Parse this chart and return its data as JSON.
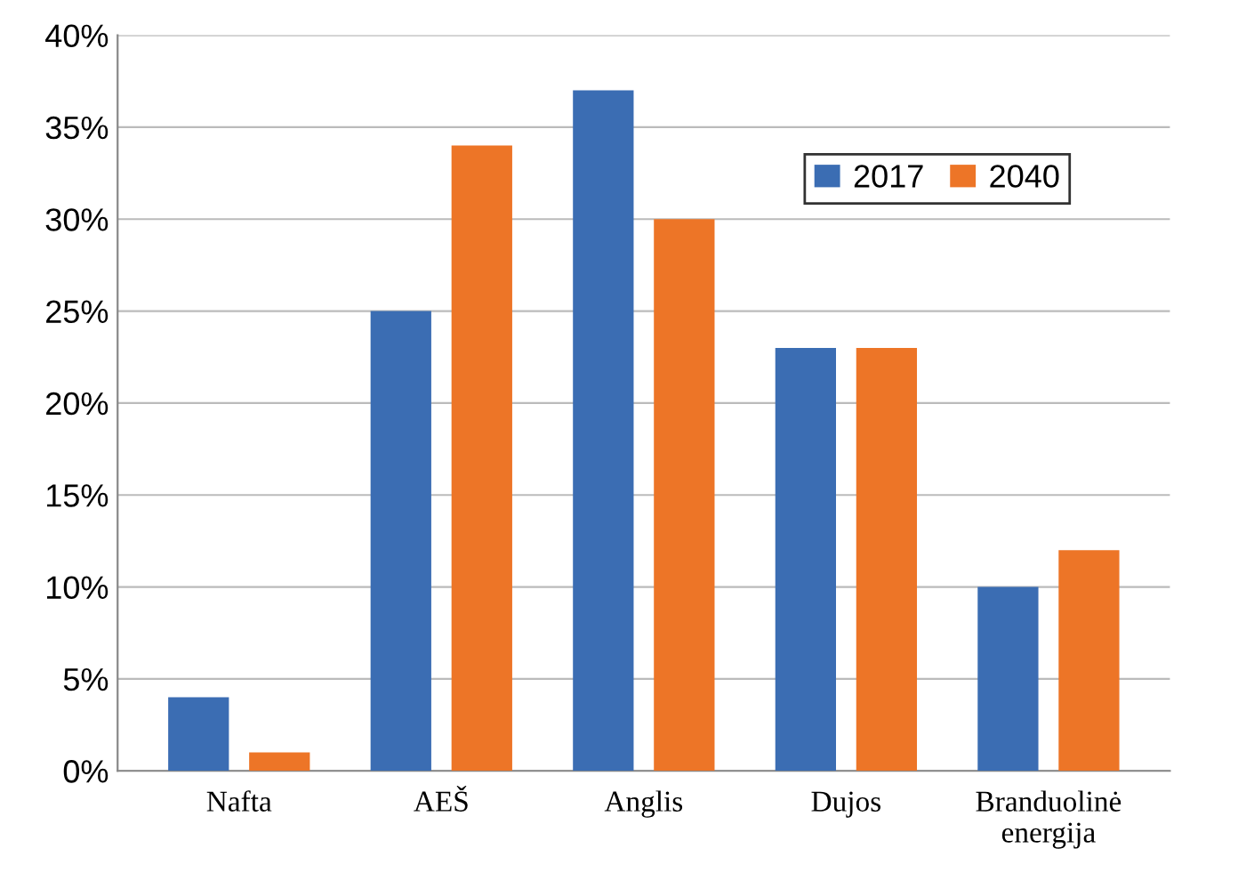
{
  "chart_data": {
    "type": "bar",
    "categories": [
      "Nafta",
      "AEŠ",
      "Anglis",
      "Dujos",
      "Branduolinė\nenergija"
    ],
    "series": [
      {
        "name": "2017",
        "color": "#3b6db3",
        "values": [
          4,
          25,
          37,
          23,
          10
        ]
      },
      {
        "name": "2040",
        "color": "#ed7527",
        "values": [
          1,
          34,
          30,
          23,
          12
        ]
      }
    ],
    "ylim": [
      0,
      40
    ],
    "yticks": [
      {
        "value": 0,
        "label": "0%"
      },
      {
        "value": 5,
        "label": "5%"
      },
      {
        "value": 10,
        "label": "10%"
      },
      {
        "value": 15,
        "label": "15%"
      },
      {
        "value": 20,
        "label": "20%"
      },
      {
        "value": 25,
        "label": "25%"
      },
      {
        "value": 30,
        "label": "30%"
      },
      {
        "value": 35,
        "label": "35%"
      },
      {
        "value": 40,
        "label": "40%"
      }
    ],
    "grid": "y",
    "legend": "top right"
  }
}
